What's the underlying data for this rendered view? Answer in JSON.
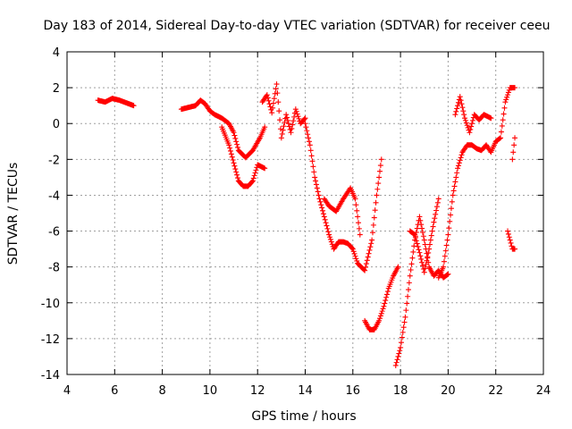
{
  "chart_data": {
    "type": "scatter",
    "title": "Day 183 of 2014, Sidereal Day-to-day VTEC variation (SDTVAR) for receiver ceeu",
    "xlabel": "GPS time / hours",
    "ylabel": "SDTVAR / TECUs",
    "xlim": [
      4,
      24
    ],
    "ylim": [
      -14,
      4
    ],
    "xticks": [
      4,
      6,
      8,
      10,
      12,
      14,
      16,
      18,
      20,
      22,
      24
    ],
    "yticks": [
      -14,
      -12,
      -10,
      -8,
      -6,
      -4,
      -2,
      0,
      2,
      4
    ],
    "grid": true,
    "marker": "+",
    "color": "#ff0000",
    "series": [
      {
        "name": "s1",
        "x": [
          5.3,
          5.6,
          5.9,
          6.2,
          6.5,
          6.8
        ],
        "y": [
          1.3,
          1.2,
          1.4,
          1.3,
          1.15,
          1.0
        ]
      },
      {
        "name": "s2",
        "x": [
          8.8,
          9.1,
          9.4,
          9.6,
          9.8,
          10.0,
          10.2,
          10.5,
          10.8,
          11.0,
          11.2,
          11.5,
          11.8,
          12.1,
          12.3
        ],
        "y": [
          0.8,
          0.9,
          1.0,
          1.3,
          1.1,
          0.7,
          0.5,
          0.3,
          0.0,
          -0.5,
          -1.5,
          -1.9,
          -1.5,
          -0.8,
          -0.2
        ]
      },
      {
        "name": "s3",
        "x": [
          10.5,
          10.8,
          11.0,
          11.2,
          11.4,
          11.6,
          11.8,
          12.0,
          12.3
        ],
        "y": [
          -0.2,
          -1.2,
          -2.2,
          -3.2,
          -3.5,
          -3.5,
          -3.2,
          -2.3,
          -2.5
        ]
      },
      {
        "name": "s4",
        "x": [
          12.2,
          12.4,
          12.6,
          12.8,
          13.0,
          13.2,
          13.4,
          13.6,
          13.8,
          14.0
        ],
        "y": [
          1.2,
          1.6,
          0.6,
          2.2,
          -0.8,
          0.5,
          -0.5,
          0.8,
          0.0,
          0.3
        ]
      },
      {
        "name": "s5",
        "x": [
          14.0,
          14.2,
          14.4,
          14.6,
          14.8,
          15.0,
          15.2,
          15.4,
          15.6,
          15.8,
          16.0,
          16.2,
          16.5,
          16.8,
          17.0,
          17.2
        ],
        "y": [
          0.0,
          -1.2,
          -3.0,
          -4.2,
          -5.2,
          -6.2,
          -7.0,
          -6.6,
          -6.6,
          -6.7,
          -7.0,
          -7.8,
          -8.2,
          -6.5,
          -4.0,
          -2.0
        ]
      },
      {
        "name": "s6",
        "x": [
          14.8,
          15.0,
          15.3,
          15.6,
          15.9,
          16.1,
          16.3
        ],
        "y": [
          -4.2,
          -4.6,
          -4.9,
          -4.2,
          -3.6,
          -4.2,
          -6.2
        ]
      },
      {
        "name": "s7",
        "x": [
          16.5,
          16.7,
          16.9,
          17.1,
          17.3,
          17.5,
          17.7,
          17.9
        ],
        "y": [
          -11.0,
          -11.5,
          -11.5,
          -11.0,
          -10.2,
          -9.2,
          -8.5,
          -8.0
        ]
      },
      {
        "name": "s8",
        "x": [
          17.8,
          18.0,
          18.2,
          18.4,
          18.6,
          18.8,
          19.0,
          19.2,
          19.4,
          19.6,
          19.8,
          20.0
        ],
        "y": [
          -13.5,
          -12.5,
          -10.8,
          -8.5,
          -6.5,
          -5.2,
          -6.5,
          -8.0,
          -8.5,
          -8.2,
          -8.6,
          -8.4
        ]
      },
      {
        "name": "s9",
        "x": [
          18.4,
          18.6,
          18.8,
          19.0,
          19.2,
          19.4,
          19.6
        ],
        "y": [
          -6.0,
          -6.2,
          -7.2,
          -8.3,
          -7.0,
          -5.5,
          -4.2
        ]
      },
      {
        "name": "s10",
        "x": [
          19.6,
          19.8,
          20.0,
          20.2,
          20.4,
          20.6,
          20.8,
          21.0,
          21.2,
          21.4,
          21.6,
          21.8,
          22.0,
          22.2,
          22.4,
          22.6,
          22.8
        ],
        "y": [
          -8.6,
          -8.0,
          -6.2,
          -4.0,
          -2.5,
          -1.6,
          -1.2,
          -1.2,
          -1.4,
          -1.5,
          -1.2,
          -1.6,
          -1.0,
          -0.8,
          1.2,
          2.0,
          2.0
        ]
      },
      {
        "name": "s11",
        "x": [
          20.3,
          20.5,
          20.7,
          20.9,
          21.1,
          21.3,
          21.5,
          21.8
        ],
        "y": [
          0.5,
          1.5,
          0.3,
          -0.5,
          0.5,
          0.2,
          0.5,
          0.3
        ]
      },
      {
        "name": "s12",
        "x": [
          22.5,
          22.6,
          22.7,
          22.8
        ],
        "y": [
          -6.0,
          -6.5,
          -7.0,
          -7.0
        ]
      },
      {
        "name": "s13",
        "x": [
          22.7,
          22.8
        ],
        "y": [
          -2.0,
          -0.8
        ]
      }
    ]
  }
}
